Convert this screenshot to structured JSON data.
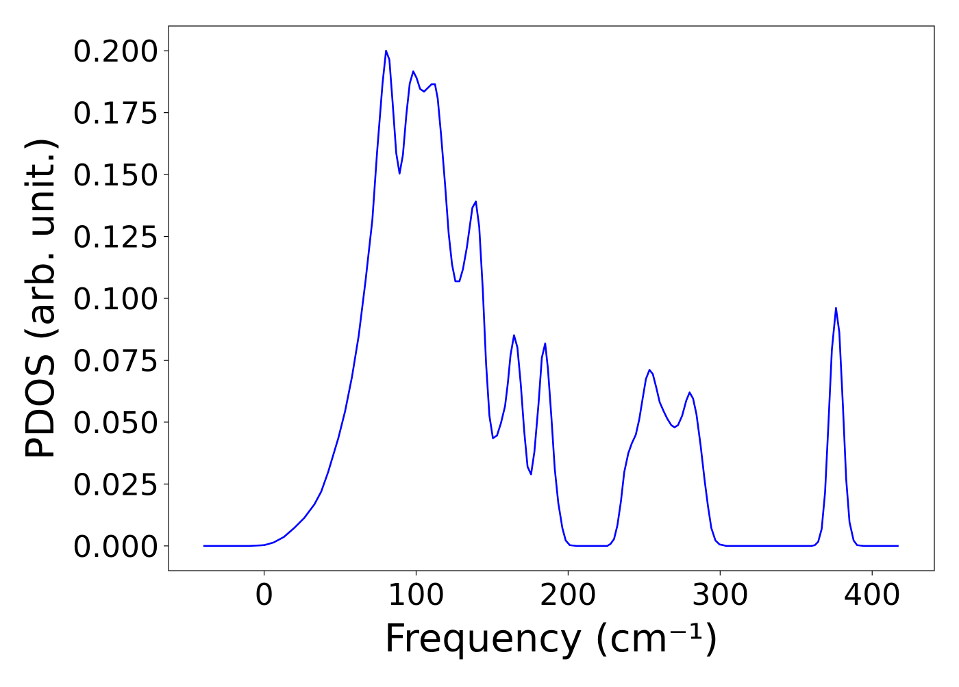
{
  "chart_data": {
    "type": "line",
    "xlabel": "Frequency (cm⁻¹)",
    "ylabel": "PDOS (arb. unit.)",
    "color": "#0000ff",
    "x": [
      -40,
      -10,
      0,
      6.3,
      13,
      19.7,
      26.4,
      33.1,
      37.6,
      42.1,
      48.8,
      53.3,
      57.8,
      62.2,
      66.7,
      71.2,
      74.3,
      77.9,
      80.2,
      82.4,
      84.6,
      86.9,
      89.1,
      91.3,
      93.6,
      95.8,
      98.1,
      100.3,
      102.6,
      105.2,
      107.9,
      110.2,
      112.4,
      114.2,
      116.4,
      119.1,
      121.4,
      123.6,
      125.8,
      128.5,
      130.8,
      133.4,
      137.0,
      139.3,
      141.5,
      143.8,
      146.0,
      148.2,
      150.5,
      153.2,
      155.8,
      158.5,
      160.3,
      162.1,
      164.4,
      166.6,
      168.8,
      171.1,
      173.3,
      175.6,
      177.8,
      180.5,
      182.7,
      184.9,
      186.7,
      189.0,
      191.2,
      193.5,
      196.2,
      198.4,
      201.1,
      205.6,
      225.7,
      227.9,
      230.2,
      232.4,
      234.7,
      236.9,
      239.6,
      241.8,
      244.5,
      246.8,
      249.0,
      251.2,
      253.5,
      255.7,
      258.0,
      260.2,
      262.9,
      265.1,
      267.8,
      270.0,
      272.3,
      275.0,
      277.7,
      279.9,
      282.2,
      284.4,
      287.1,
      289.8,
      292.0,
      294.2,
      296.9,
      299.6,
      304.1,
      360.0,
      362.3,
      364.5,
      366.8,
      369.0,
      371.2,
      373.5,
      376.2,
      378.4,
      380.7,
      382.9,
      385.1,
      387.8,
      390.1,
      394.5,
      417.4
    ],
    "values": [
      0,
      0,
      0.0003,
      0.0014,
      0.0036,
      0.0072,
      0.0113,
      0.0168,
      0.022,
      0.0298,
      0.0435,
      0.0545,
      0.0683,
      0.0848,
      0.107,
      0.1317,
      0.159,
      0.1868,
      0.2,
      0.1964,
      0.1785,
      0.1587,
      0.1504,
      0.1579,
      0.1744,
      0.1868,
      0.1917,
      0.189,
      0.1846,
      0.1835,
      0.1851,
      0.1865,
      0.1865,
      0.1807,
      0.1661,
      0.1455,
      0.1262,
      0.1138,
      0.1069,
      0.1069,
      0.1118,
      0.1207,
      0.1366,
      0.1391,
      0.1289,
      0.1041,
      0.0738,
      0.0526,
      0.0435,
      0.0446,
      0.0496,
      0.0565,
      0.0656,
      0.0771,
      0.0851,
      0.0802,
      0.0656,
      0.0463,
      0.032,
      0.0289,
      0.038,
      0.0573,
      0.076,
      0.0818,
      0.0716,
      0.0518,
      0.0311,
      0.0174,
      0.0072,
      0.0022,
      0.0003,
      0,
      0,
      0.0008,
      0.0028,
      0.0083,
      0.0179,
      0.0298,
      0.0375,
      0.0413,
      0.0449,
      0.0512,
      0.0595,
      0.0675,
      0.0711,
      0.0694,
      0.0639,
      0.0581,
      0.0543,
      0.0515,
      0.0488,
      0.0479,
      0.0488,
      0.0526,
      0.0587,
      0.062,
      0.0595,
      0.0532,
      0.0408,
      0.0264,
      0.016,
      0.0072,
      0.0022,
      0.0006,
      0,
      0,
      0.0003,
      0.0017,
      0.0069,
      0.0215,
      0.049,
      0.0793,
      0.0961,
      0.0862,
      0.0573,
      0.027,
      0.0096,
      0.0022,
      0.0003,
      0,
      0
    ],
    "xlim": [
      -62.9,
      440.9
    ],
    "ylim": [
      -0.01,
      0.21
    ],
    "xticks": [
      0,
      100,
      200,
      300,
      400
    ],
    "yticks": [
      {
        "value": 0,
        "label": "0.000"
      },
      {
        "value": 0.025,
        "label": "0.025"
      },
      {
        "value": 0.05,
        "label": "0.050"
      },
      {
        "value": 0.075,
        "label": "0.075"
      },
      {
        "value": 0.1,
        "label": "0.100"
      },
      {
        "value": 0.125,
        "label": "0.125"
      },
      {
        "value": 0.15,
        "label": "0.150"
      },
      {
        "value": 0.175,
        "label": "0.175"
      },
      {
        "value": 0.2,
        "label": "0.200"
      }
    ]
  }
}
